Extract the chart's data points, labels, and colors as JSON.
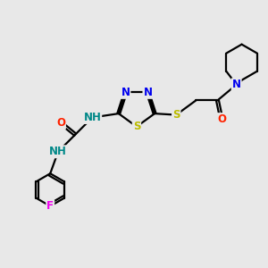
{
  "bg_color": "#e8e8e8",
  "bond_color": "#000000",
  "atom_colors": {
    "N": "#0000ee",
    "O": "#ff2200",
    "S": "#bbbb00",
    "F": "#ee00ee",
    "H_label": "#008888",
    "C": "#000000"
  },
  "figsize": [
    3.0,
    3.0
  ],
  "dpi": 100,
  "lw": 1.6,
  "fs": 8.5
}
